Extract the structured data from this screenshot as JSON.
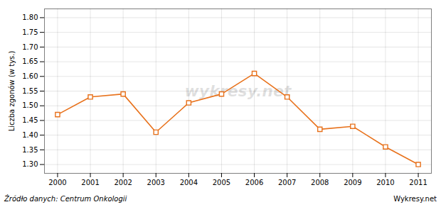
{
  "chart_data": {
    "type": "line",
    "ylabel": "Liczba zgonów (w tys.)",
    "x": [
      2000,
      2001,
      2002,
      2003,
      2004,
      2005,
      2006,
      2007,
      2008,
      2009,
      2010,
      2011
    ],
    "values": [
      1.47,
      1.53,
      1.54,
      1.41,
      1.51,
      1.54,
      1.61,
      1.53,
      1.42,
      1.43,
      1.36,
      1.3
    ],
    "color": "#e8721c",
    "marker": "square",
    "xlim": [
      1999.6,
      2011.4
    ],
    "xticks": [
      2000,
      2001,
      2002,
      2003,
      2004,
      2005,
      2006,
      2007,
      2008,
      2009,
      2010,
      2011
    ],
    "ylim": [
      1.27,
      1.83
    ],
    "yticks": [
      {
        "value": 1.3,
        "label": "1.30"
      },
      1.35,
      {
        "value": 1.4,
        "label": "1.40"
      },
      1.45,
      {
        "value": 1.5,
        "label": "1.50"
      },
      1.55,
      {
        "value": 1.6,
        "label": "1.60"
      },
      1.65,
      {
        "value": 1.7,
        "label": "1.70"
      },
      1.75,
      {
        "value": 1.8,
        "label": "1.80"
      }
    ],
    "grid": true,
    "watermark": "wykresy.net",
    "source": "Źródło danych:  Centrum Onkologii",
    "credit": "Wykresy.net"
  }
}
